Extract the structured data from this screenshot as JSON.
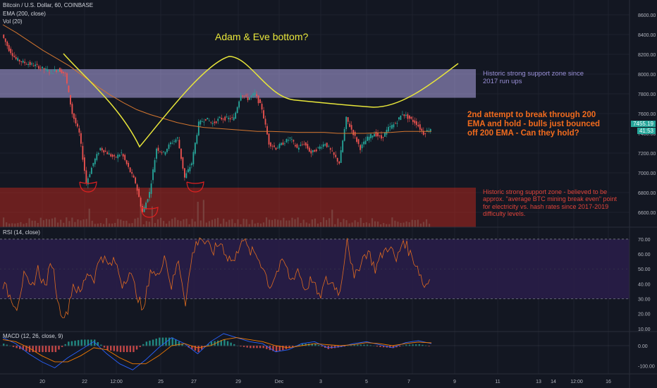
{
  "header": {
    "symbol": "Bitcoin / U.S. Dollar, 60, COINBASE",
    "ema_label": "EMA (200, close)",
    "vol_label": "Vol (20)",
    "rsi_label": "RSI (14, close)",
    "macd_label": "MACD (12, 26, close, 9)"
  },
  "annotations": {
    "adam_eve": "Adam & Eve bottom?",
    "upper_zone": "Historic strong support zone since 2017 run ups",
    "ema_note": "2nd attempt to break through 200 EMA and hold - bulls just bounced off 200 EMA - Can they hold?",
    "lower_zone": "Historic strong support zone - believed to be approx. \"average BTC mining break even\" point for electricity vs. hash rates since 2017-2019 difficulty levels."
  },
  "price_tags": {
    "last_price": "7455.19",
    "countdown": "41:53"
  },
  "colors": {
    "background": "#131722",
    "upper_zone": "#b0a6e6",
    "lower_zone": "#b3261e",
    "ema": "#d2752f",
    "rsi_line": "#e06b1f",
    "rsi_band": "#2a1d4a",
    "adam_eve_curve": "#e8e63a",
    "bull": "#26a69a",
    "bear": "#ef5350",
    "ema_note_text": "#f26b1d",
    "lower_note_text": "#e0433a",
    "upper_note_text": "#9a90d8",
    "last_price_tag": "#26a69a"
  },
  "chart_data": {
    "type": "candlestick",
    "title": "Bitcoin / U.S. Dollar, 60, COINBASE",
    "price_axis": {
      "ticks": [
        8600,
        8400,
        8200,
        8000,
        7800,
        7600,
        7400,
        7200,
        7000,
        6800,
        6600
      ],
      "tick_labels": [
        "8600.00",
        "8400.00",
        "8200.00",
        "8000.00",
        "7800.00",
        "7600.00",
        "7400.00",
        "7200.00",
        "7000.00",
        "6800.00",
        "6600.00"
      ],
      "range": [
        6450,
        8750
      ]
    },
    "time_axis": {
      "labels": [
        "20",
        "22",
        "12:00",
        "25",
        "27",
        "29",
        "Dec",
        "3",
        "5",
        "7",
        "9",
        "11",
        "13",
        "14",
        "16",
        "12:00",
        "18"
      ]
    },
    "support_zones": [
      {
        "name": "upper",
        "from": 7760,
        "to": 8050
      },
      {
        "name": "lower",
        "from": 6450,
        "to": 6850
      }
    ],
    "price_series": [
      8400,
      8250,
      8150,
      8120,
      8100,
      8080,
      8050,
      8020,
      8050,
      8000,
      7600,
      7400,
      6900,
      7100,
      7250,
      7200,
      7150,
      7200,
      7050,
      6900,
      6600,
      6800,
      7250,
      7200,
      7300,
      7350,
      6950,
      7100,
      7500,
      7550,
      7500,
      7550,
      7550,
      7550,
      7800,
      7750,
      7800,
      7650,
      7300,
      7250,
      7300,
      7350,
      7250,
      7300,
      7200,
      7250,
      7300,
      7200,
      7100,
      7550,
      7400,
      7250,
      7350,
      7400,
      7350,
      7450,
      7500,
      7600,
      7550,
      7500,
      7400,
      7450
    ],
    "ema_series": [
      8500,
      8420,
      8330,
      8240,
      8160,
      8080,
      7980,
      7880,
      7790,
      7710,
      7640,
      7590,
      7550,
      7510,
      7480,
      7460,
      7450,
      7440,
      7430,
      7420,
      7420,
      7415,
      7410,
      7410,
      7410,
      7400,
      7400,
      7400,
      7405,
      7410,
      7420,
      7420,
      7420
    ],
    "rsi_axis": {
      "ticks": [
        70,
        60,
        50,
        40,
        30,
        20,
        10
      ],
      "tick_labels": [
        "70.00",
        "60.00",
        "50.00",
        "40.00",
        "30.00",
        "20.00",
        "10.00"
      ],
      "range": [
        8,
        78
      ],
      "band": [
        30,
        70
      ]
    },
    "rsi_series": [
      40,
      32,
      25,
      45,
      36,
      50,
      38,
      55,
      24,
      18,
      40,
      33,
      48,
      44,
      60,
      52,
      55,
      40,
      48,
      35,
      20,
      50,
      44,
      60,
      38,
      56,
      28,
      60,
      72,
      66,
      62,
      68,
      58,
      55,
      72,
      62,
      60,
      52,
      38,
      48,
      55,
      42,
      50,
      36,
      44,
      30,
      42,
      40,
      34,
      72,
      42,
      56,
      62,
      50,
      60,
      66,
      55,
      70,
      60,
      52,
      38,
      45
    ],
    "macd_axis": {
      "ticks": [
        0,
        -100
      ],
      "tick_labels": [
        "0.00",
        "-100.00"
      ],
      "range": [
        -140,
        70
      ]
    },
    "macd_series": [
      40,
      10,
      -40,
      -80,
      -110,
      -60,
      -20,
      20,
      -40,
      -90,
      -120,
      -70,
      -10,
      40,
      10,
      -40,
      20,
      60,
      40,
      20,
      10,
      -30,
      -20,
      10,
      20,
      -10,
      -5,
      10,
      20,
      5,
      -10,
      15,
      25,
      10
    ],
    "signal_series": [
      30,
      20,
      -10,
      -50,
      -80,
      -80,
      -50,
      -10,
      -20,
      -60,
      -90,
      -90,
      -50,
      0,
      10,
      -10,
      0,
      30,
      40,
      30,
      20,
      0,
      -10,
      0,
      10,
      5,
      0,
      5,
      15,
      10,
      0,
      10,
      18,
      14
    ]
  }
}
